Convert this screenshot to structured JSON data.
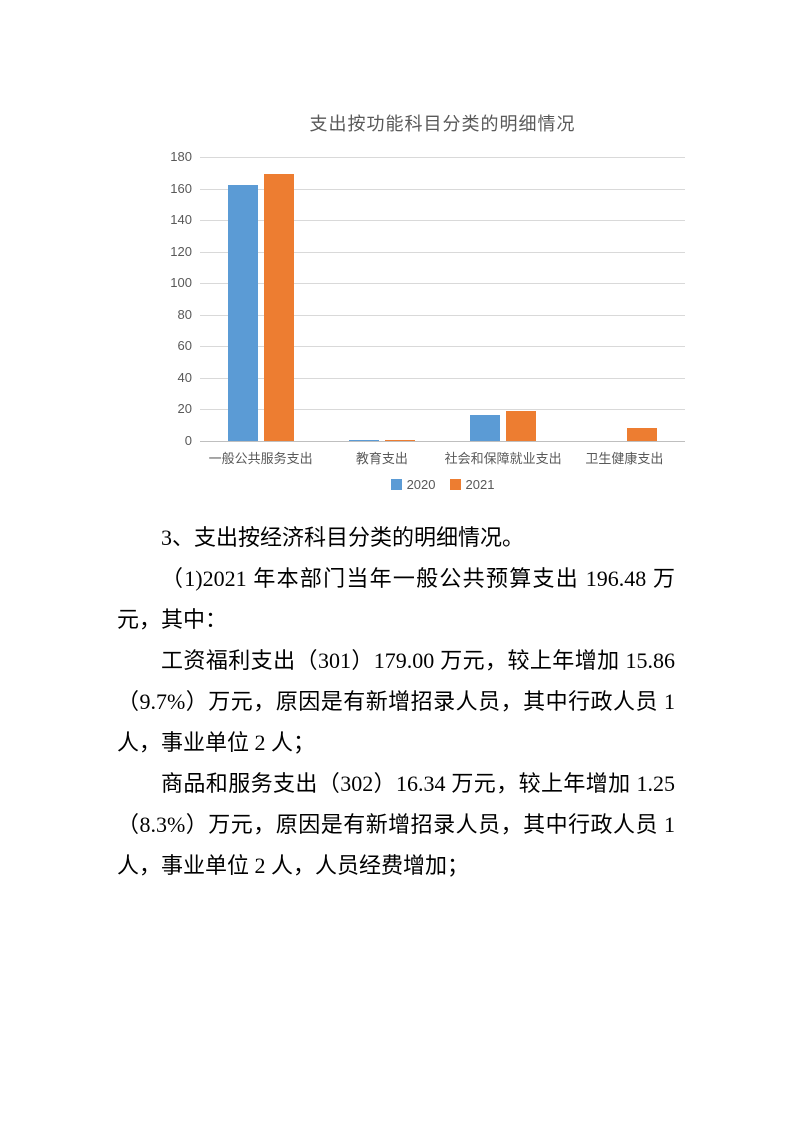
{
  "chart_data": {
    "type": "bar",
    "title": "支出按功能科目分类的明细情况",
    "categories": [
      "一般公共服务支出",
      "教育支出",
      "社会和保障就业支出",
      "卫生健康支出"
    ],
    "series": [
      {
        "name": "2020",
        "color": "#5B9BD5",
        "values": [
          162,
          0.7,
          16.5,
          0
        ]
      },
      {
        "name": "2021",
        "color": "#ED7D31",
        "values": [
          169,
          0.6,
          19,
          8
        ]
      }
    ],
    "xlabel": "",
    "ylabel": "",
    "ylim": [
      0,
      180
    ],
    "ytick_step": 20,
    "grid": true,
    "legend_position": "bottom",
    "colors": {
      "gridline": "#d9d9d9",
      "axis_line": "#bfbfbf",
      "axis_text": "#595959"
    }
  },
  "document": {
    "paragraphs": [
      {
        "text": "3、支出按经济科目分类的明细情况。"
      },
      {
        "text": "（1)2021 年本部门当年一般公共预算支出 196.48 万元，其中："
      },
      {
        "text": "工资福利支出（301）179.00 万元，较上年增加 15.86（9.7%）万元，原因是有新增招录人员，其中行政人员 1 人，事业单位 2 人；"
      },
      {
        "text": "商品和服务支出（302）16.34 万元，较上年增加 1.25（8.3%）万元，原因是有新增招录人员，其中行政人员 1 人，事业单位 2 人，人员经费增加；"
      }
    ]
  }
}
